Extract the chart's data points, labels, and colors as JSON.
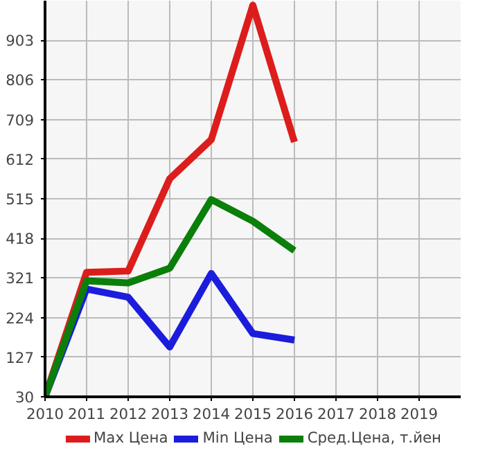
{
  "chart_data": {
    "type": "line",
    "x": [
      2010,
      2011,
      2012,
      2013,
      2014,
      2015,
      2016
    ],
    "series": [
      {
        "name": "Max Цена",
        "color": "#dd1c1c",
        "values": [
          30,
          335,
          338,
          564,
          660,
          989,
          654
        ]
      },
      {
        "name": "Min Цена",
        "color": "#1c1cdd",
        "values": [
          30,
          294,
          274,
          152,
          332,
          185,
          169
        ]
      },
      {
        "name": "Сред.Цена, т.йен",
        "color": "#0a7f0a",
        "values": [
          30,
          314,
          309,
          345,
          513,
          460,
          388
        ]
      }
    ],
    "xlim": [
      2010,
      2020
    ],
    "xticks": [
      2010,
      2011,
      2012,
      2013,
      2014,
      2015,
      2016,
      2017,
      2018,
      2019
    ],
    "ylim": [
      30,
      1000
    ],
    "yticks": [
      30,
      127,
      224,
      321,
      418,
      515,
      612,
      709,
      806,
      903
    ],
    "grid": true,
    "legend": "bottom",
    "marker": "none",
    "line_style": "solid"
  }
}
